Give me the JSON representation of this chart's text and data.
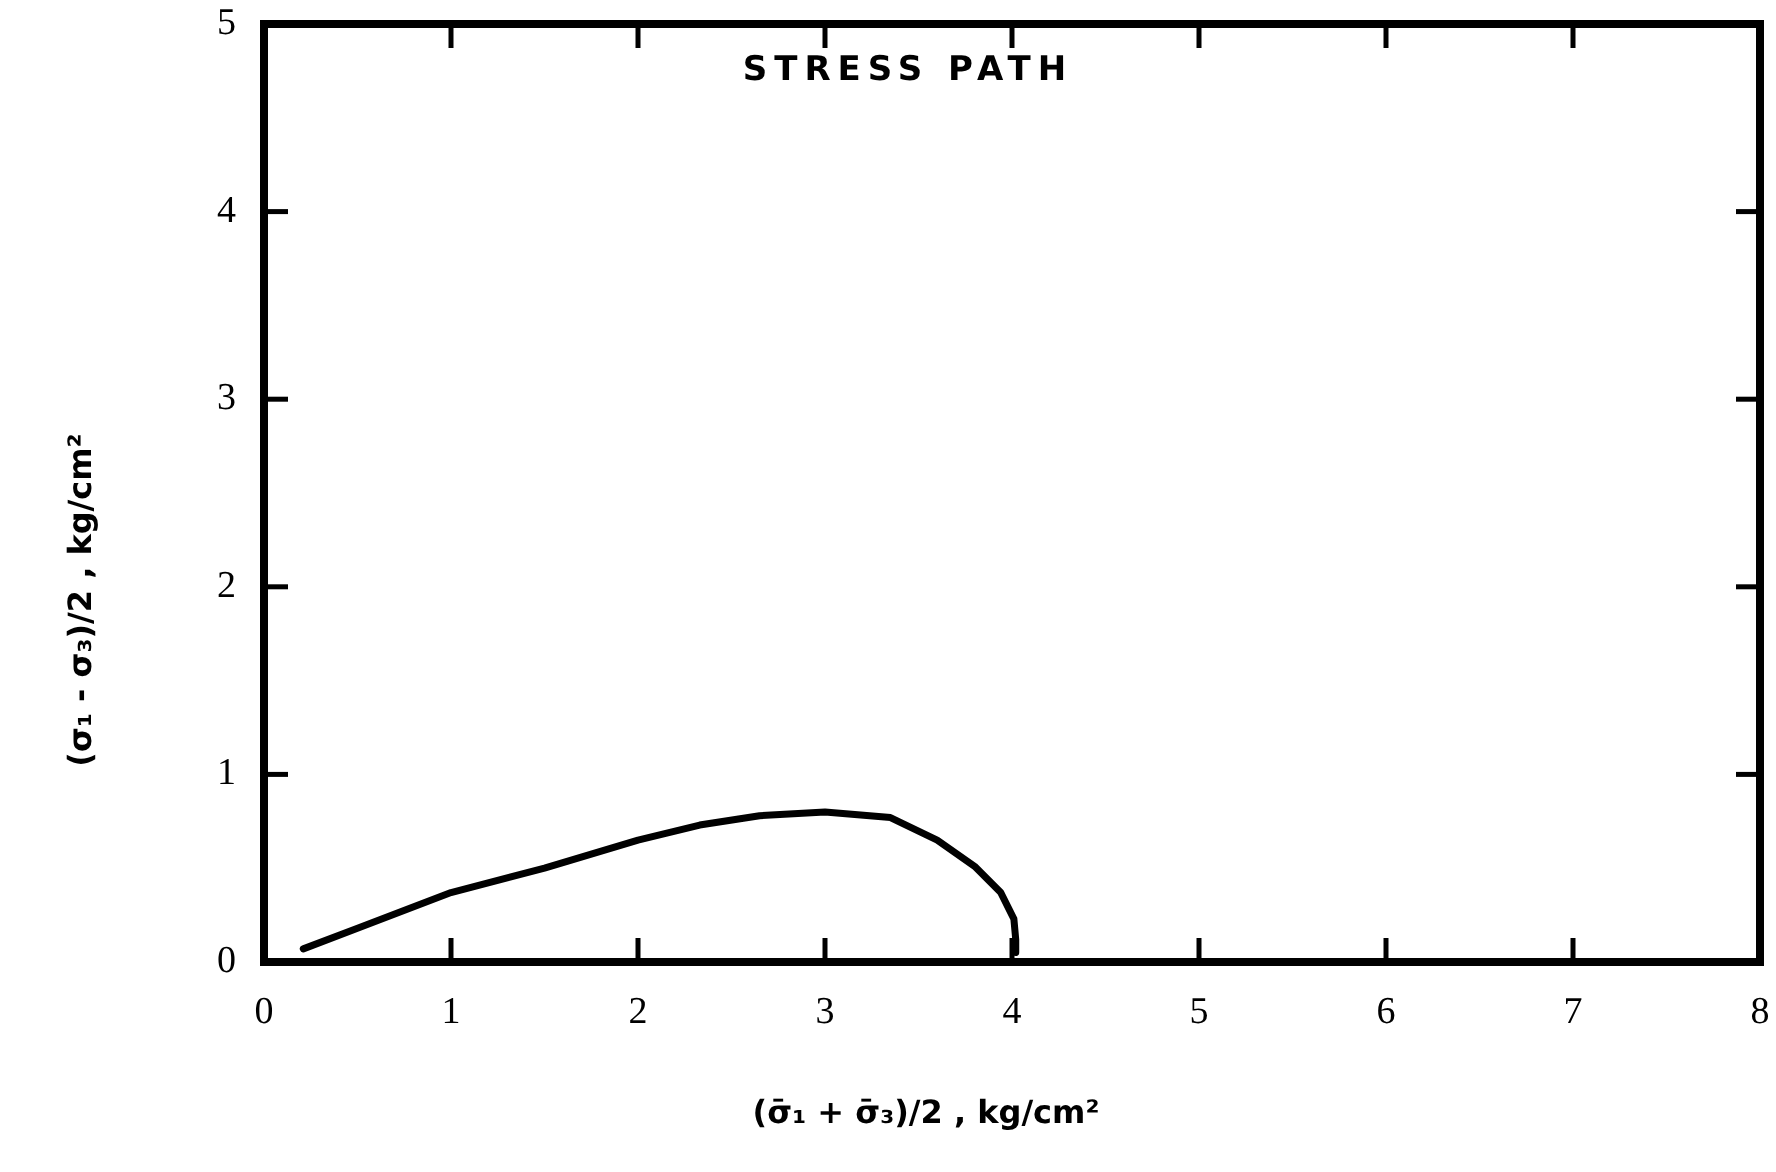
{
  "chart_data": {
    "type": "line",
    "title": "STRESS PATH",
    "xlabel": "(σ̄₁ + σ̄₃)/2 , kg/cm²",
    "ylabel": "(σ₁ - σ₃)/2 , kg/cm²",
    "x": [
      0.21,
      0.5,
      1.0,
      1.5,
      2.0,
      2.33,
      2.65,
      3.0,
      3.35,
      3.6,
      3.8,
      3.94,
      4.01,
      4.02,
      4.02
    ],
    "series": [
      {
        "color": "#000000",
        "values": [
          0.07,
          0.18,
          0.37,
          0.5,
          0.65,
          0.73,
          0.78,
          0.8,
          0.77,
          0.65,
          0.51,
          0.37,
          0.23,
          0.12,
          0.05
        ]
      }
    ],
    "xlim": [
      0,
      8
    ],
    "ylim": [
      0,
      5
    ],
    "xticks": [
      0,
      1,
      2,
      3,
      4,
      5,
      6,
      7,
      8
    ],
    "yticks": [
      0,
      1,
      2,
      3,
      4,
      5
    ],
    "marker": "none",
    "legend": false
  }
}
